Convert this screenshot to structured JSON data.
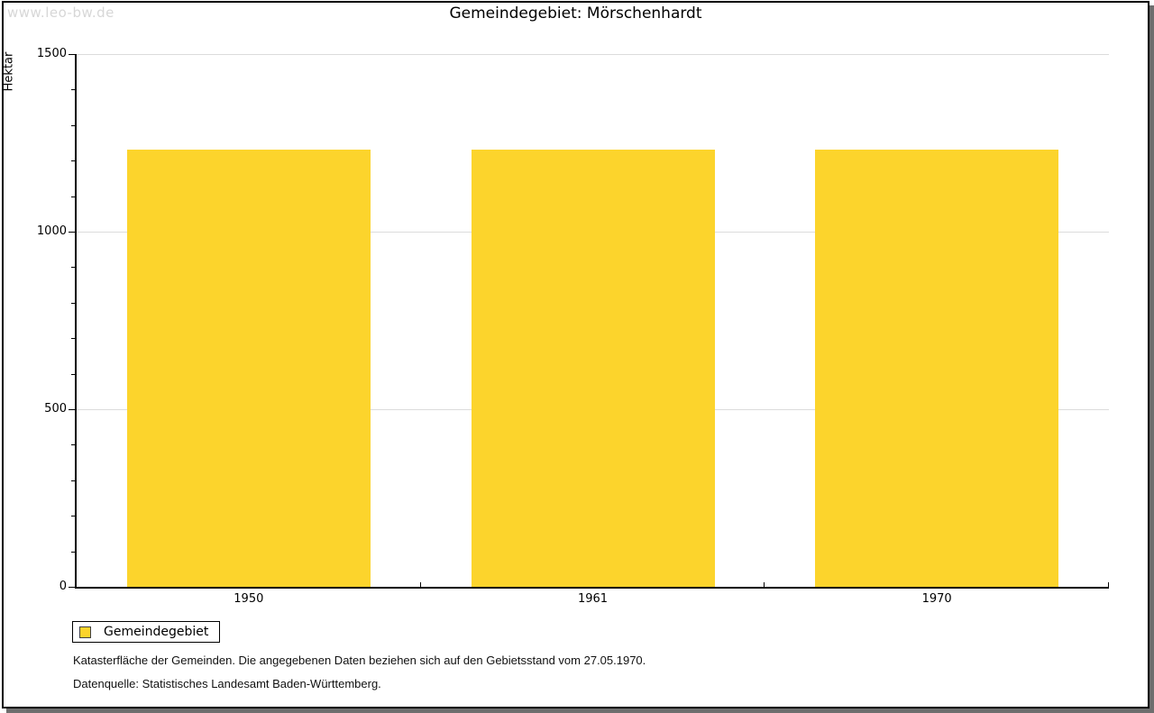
{
  "watermark": "www.leo-bw.de",
  "chart_data": {
    "type": "bar",
    "title": "Gemeindegebiet: Mörschenhardt",
    "ylabel": "Hektar",
    "xlabel": "",
    "categories": [
      "1950",
      "1961",
      "1970"
    ],
    "series": [
      {
        "name": "Gemeindegebiet",
        "values": [
          1230,
          1230,
          1230
        ],
        "color": "#fcd42c"
      }
    ],
    "ylim": [
      0,
      1500
    ],
    "ytick_major": 500,
    "ytick_minor": 100,
    "grid": "horizontal-major",
    "legend_position": "bottom-left"
  },
  "footnotes": {
    "line1": "Katasterfläche der Gemeinden. Die angegebenen Daten beziehen sich auf den Gebietsstand vom 27.05.1970.",
    "line2": "Datenquelle: Statistisches Landesamt Baden-Württemberg."
  },
  "colors": {
    "bar": "#fcd42c",
    "grid": "#dcdcdc",
    "axis": "#000000",
    "watermark": "#d7d7d7",
    "frame_border": "#000000",
    "frame_shadow": "#6e6e6e"
  }
}
